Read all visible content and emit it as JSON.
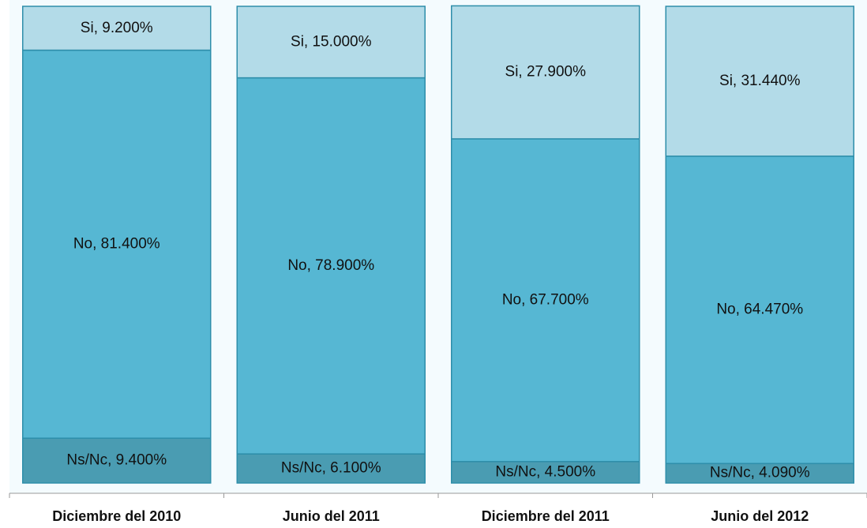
{
  "chart_data": {
    "type": "stacked_bar",
    "categories": [
      "Diciembre del 2010",
      "Junio del 2011",
      "Diciembre del 2011",
      "Junio del 2012"
    ],
    "series": [
      {
        "name": "Ns/Nc",
        "color": "#4a9cb2",
        "values": [
          9.4,
          6.1,
          4.5,
          4.09
        ],
        "value_labels": [
          "Ns/Nc, 9.400%",
          "Ns/Nc, 6.100%",
          "Ns/Nc, 4.500%",
          "Ns/Nc, 4.090%"
        ]
      },
      {
        "name": "No",
        "color": "#56b7d3",
        "values": [
          81.4,
          78.9,
          67.7,
          64.47
        ],
        "value_labels": [
          "No, 81.400%",
          "No, 78.900%",
          "No, 67.700%",
          "No, 64.470%"
        ]
      },
      {
        "name": "Si",
        "color": "#b3dbe8",
        "values": [
          9.2,
          15.0,
          27.9,
          31.44
        ],
        "value_labels": [
          "Si, 9.200%",
          "Si, 15.000%",
          "Si, 27.900%",
          "Si, 31.440%"
        ]
      }
    ],
    "ylim": [
      0,
      100
    ]
  }
}
